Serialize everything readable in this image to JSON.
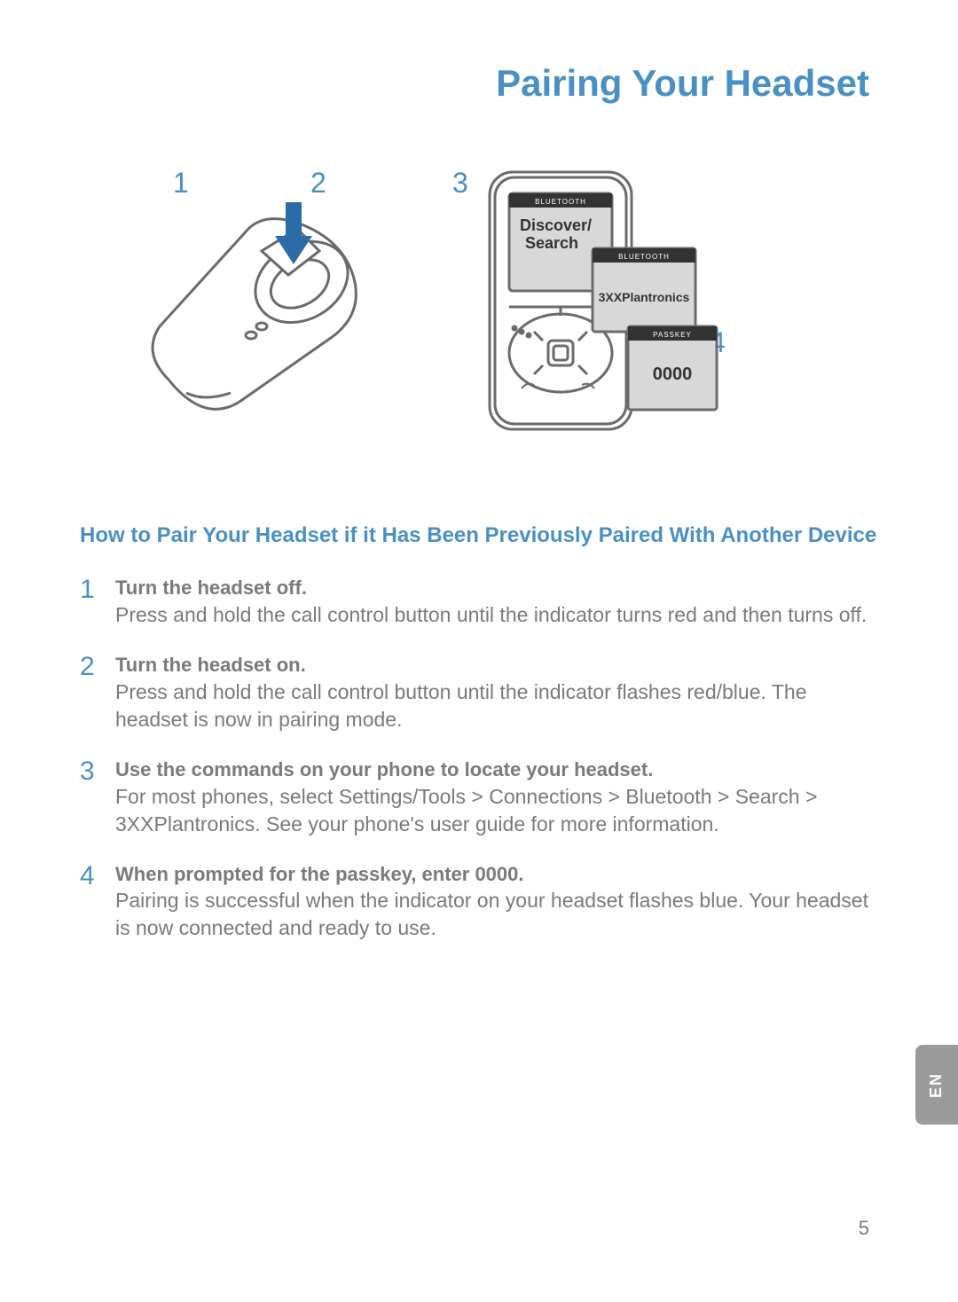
{
  "colors": {
    "title_blue": "#4a90c2",
    "gray_text": "#7a7a7a",
    "arrow_blue": "#2b6ca8",
    "lang_tab_bg": "#9b9b9b",
    "phone_stroke": "#6b6b6b",
    "phone_screen_fill": "#d8d8d8",
    "phone_bar_fill": "#333333"
  },
  "title": "Pairing Your Headset",
  "illustration": {
    "step_labels": {
      "one": "1",
      "two": "2",
      "three": "3",
      "four": "4"
    },
    "phone_screen1_bar": "BLUETOOTH",
    "phone_screen1_text1": "Discover/",
    "phone_screen1_text2": "Search",
    "phone_screen2_bar": "BLUETOOTH",
    "phone_screen2_text": "3XXPlantronics",
    "phone_screen3_bar": "PASSKEY",
    "phone_screen3_text": "0000"
  },
  "subtitle": "How to Pair Your Headset if it Has Been Previously Paired With Another Device",
  "steps": [
    {
      "num": "1",
      "title": "Turn the headset off.",
      "text": "Press and hold the call control button until the indicator turns red and then turns off."
    },
    {
      "num": "2",
      "title": "Turn the headset on.",
      "text": "Press and hold the call control button until the indicator ﬂashes red/blue. The headset is now in pairing mode."
    },
    {
      "num": "3",
      "title": "Use the commands on your phone to locate your headset.",
      "text": "For most phones, select Settings/Tools > Connections > Bluetooth > Search > 3XXPlantronics. See your phone's user guide for more information."
    },
    {
      "num": "4",
      "title": "When prompted for the passkey, enter 0000.",
      "text": "Pairing is successful when the indicator on your headset ﬂashes blue. Your headset is now connected and ready to use."
    }
  ],
  "lang_tab": "EN",
  "page_number": "5",
  "typography": {
    "title_fontsize": 42,
    "subtitle_fontsize": 24,
    "step_num_fontsize": 30,
    "step_title_fontsize": 22,
    "step_text_fontsize": 23,
    "illustration_num_fontsize": 32
  }
}
